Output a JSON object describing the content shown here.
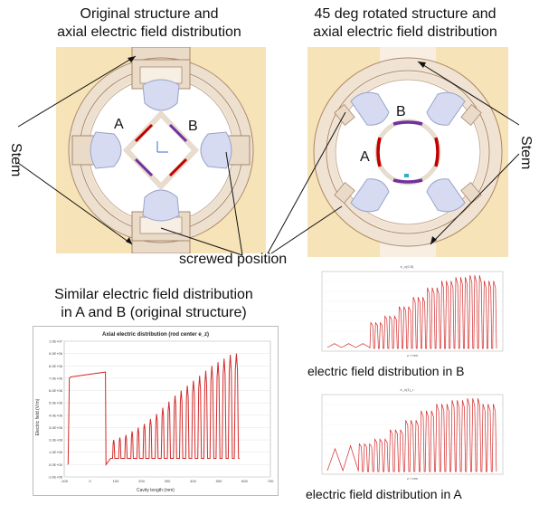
{
  "top_left": {
    "title_line1": "Original structure and",
    "title_line2": "axial electric field distribution",
    "label_a": "A",
    "label_b": "B"
  },
  "top_right": {
    "title_line1": "45 deg rotated structure and",
    "title_line2": "axial electric field distribution",
    "label_a": "A",
    "label_b": "B"
  },
  "stem_left": "Stem",
  "stem_right": "Stem",
  "screwed_label": "screwed position",
  "similar_line1": "Similar electric field distribution",
  "similar_line2": "in A and B (original structure)",
  "caption_b": "electric field distribution in B",
  "caption_a": "electric field distribution in A",
  "colors": {
    "background_tint": "#f7e3b8",
    "ring": "#e7d8c6",
    "vane": "#d7dcf2",
    "stripe_red": "#c00000",
    "stripe_purple": "#7030a0",
    "curve": "#d42a2a"
  },
  "chart_data": [
    {
      "type": "line",
      "title": "Axial electric distribution (rod center e_z)",
      "xlabel": "Cavity length (mm)",
      "ylabel": "Electric field (V/m)",
      "x_ticks": [
        "-100",
        "0",
        "100",
        "200",
        "300",
        "400",
        "500",
        "600",
        "700"
      ],
      "y_ticks": [
        "-1.0E+06",
        "0.0E+00",
        "1.0E+06",
        "2.0E+06",
        "3.0E+06",
        "4.0E+06",
        "5.0E+06",
        "6.0E+06",
        "7.0E+06",
        "8.0E+06",
        "9.0E+06",
        "1.0E+07"
      ],
      "xlim": [
        -100,
        700
      ],
      "ylim": [
        -1000000,
        10000000
      ],
      "series": [
        {
          "segments": [
            {
              "x": [
                -85,
                -80,
                -75,
                60,
                62
              ],
              "y": [
                0,
                7000000,
                7100000,
                7500000,
                0
              ]
            },
            {
              "x_start": 80,
              "x_end": 580,
              "peaks": [
                2000000,
                2200000,
                2400000,
                2700000,
                3000000,
                3300000,
                3700000,
                4100000,
                4600000,
                5100000,
                5600000,
                6000000,
                6400000,
                6800000,
                7200000,
                7600000,
                8000000,
                8300000,
                8600000,
                8900000,
                9000000
              ]
            }
          ]
        }
      ]
    },
    {
      "type": "line",
      "title": "e_z(0.5)",
      "xlabel": "z / mm",
      "ylabel": "",
      "series": [
        {
          "description_values": [
            0.6,
            0.6,
            0.6,
            2.8,
            3.5,
            4.5,
            5.5,
            6.5,
            7.2,
            7.6,
            7.8,
            7.2
          ]
        }
      ]
    },
    {
      "type": "line",
      "title": "e_z(1)_r",
      "xlabel": "z / mm",
      "ylabel": "",
      "series": [
        {
          "description_values": [
            2.5,
            2.8,
            3.0,
            3.5,
            4.5,
            5.5,
            6.5,
            7.2,
            7.6,
            7.8,
            7.2
          ]
        }
      ]
    }
  ]
}
